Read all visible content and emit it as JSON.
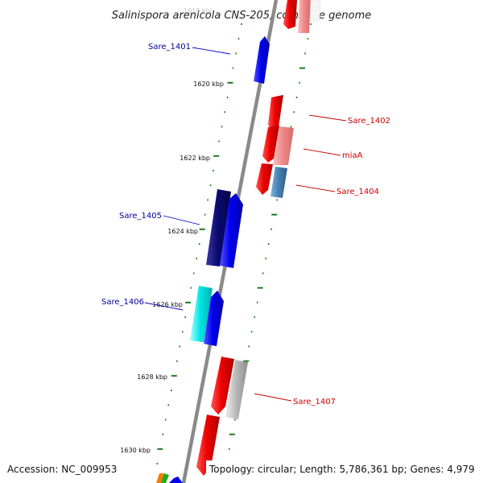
{
  "title": "Salinispora arenicola CNS-205, complete genome",
  "footer": {
    "accession": "Accession: NC_009953",
    "topology": "Topology: circular; Length: 5,786,361 bp; Genes: 4,979"
  },
  "scale_labels": {
    "faded_top": "1618 kbp",
    "k1620": "1620 kbp",
    "k1622": "1622 kbp",
    "k1624": "1624 kbp",
    "k1626": "1626 kbp",
    "k1628": "1628 kbp",
    "k1630": "1630 kbp"
  },
  "gene_labels": {
    "sare_1401": "Sare_1401",
    "sare_1402": "Sare_1402",
    "miaA": "miaA",
    "sare_1404": "Sare_1404",
    "sare_1405": "Sare_1405",
    "sare_1406": "Sare_1406",
    "sare_1407": "Sare_1407"
  },
  "colors": {
    "backbone": "#888888",
    "tick": "#1b7a1b",
    "forward_strand": "#0000ee",
    "reverse_strand": "#ee0000",
    "dark_blue": "#0a0a70",
    "cyan": "#00e5e5",
    "light_red": "#f08a8a",
    "steel_blue": "#4682b4",
    "gray": "#bbbbbb",
    "forward_label": "#000099",
    "reverse_label": "#cc0000"
  }
}
